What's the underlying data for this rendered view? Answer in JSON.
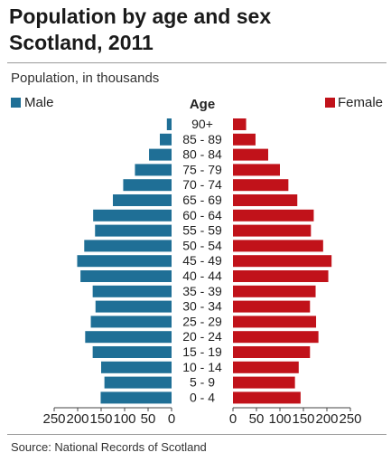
{
  "title_line1": "Population by age and sex",
  "title_line2": "Scotland, 2011",
  "subtitle": "Population, in thousands",
  "source": "Source:  National Records of Scotland",
  "colors": {
    "male": "#1f6f96",
    "female": "#c1121a"
  },
  "chart_data": {
    "type": "bar",
    "orientation": "horizontal",
    "layout": "population-pyramid",
    "center_label": "Age",
    "categories": [
      "90+",
      "85 - 89",
      "80 - 84",
      "75 - 79",
      "70 - 74",
      "65 - 69",
      "60 - 64",
      "55 - 59",
      "50 - 54",
      "45 - 49",
      "40 - 44",
      "35 - 39",
      "30 - 34",
      "25 - 29",
      "20 - 24",
      "15 - 19",
      "10 - 14",
      "5 - 9",
      "0 - 4"
    ],
    "series": [
      {
        "name": "Male",
        "side": "left",
        "values": [
          10,
          25,
          48,
          78,
          103,
          125,
          167,
          163,
          186,
          201,
          194,
          168,
          162,
          172,
          184,
          168,
          150,
          143,
          151
        ]
      },
      {
        "name": "Female",
        "side": "right",
        "values": [
          28,
          48,
          75,
          100,
          118,
          137,
          172,
          166,
          192,
          210,
          203,
          176,
          164,
          177,
          182,
          164,
          140,
          132,
          144
        ]
      }
    ],
    "xlim": [
      0,
      250
    ],
    "ticks": [
      250,
      200,
      150,
      100,
      50,
      0
    ],
    "xlabel": "Population, in thousands",
    "legend": "top",
    "grid": false
  }
}
